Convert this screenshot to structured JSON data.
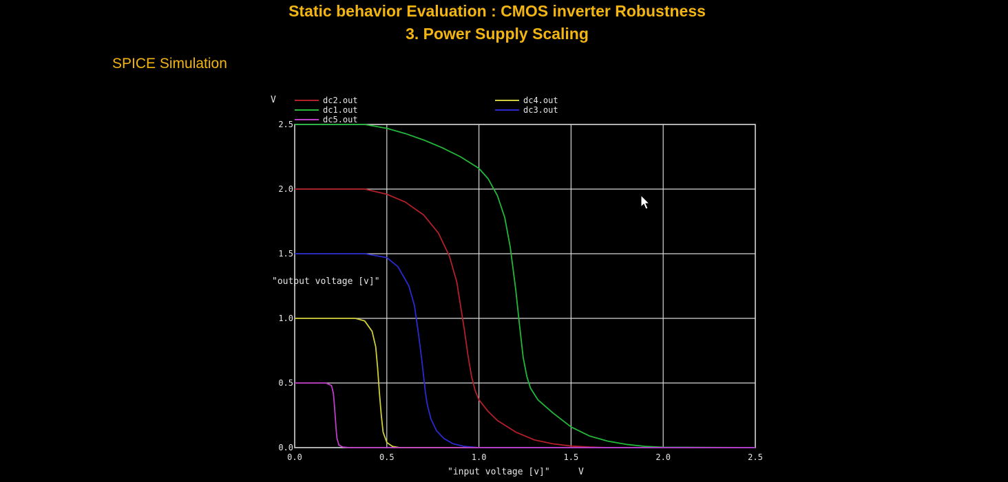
{
  "slide": {
    "title_line1": "Static behavior Evaluation : CMOS inverter Robustness",
    "title_line2": "3. Power Supply Scaling",
    "subtitle": "SPICE Simulation"
  },
  "chart_data": {
    "type": "line",
    "y_unit": "V",
    "x_unit": "V",
    "ylabel": "\"output voltage [v]\"",
    "xlabel": "\"input voltage [v]\"",
    "xlim": [
      0,
      2.5
    ],
    "ylim": [
      0,
      2.5
    ],
    "x_ticks": [
      "0.0",
      "0.5",
      "1.0",
      "1.5",
      "2.0",
      "2.5"
    ],
    "y_ticks": [
      "0.0",
      "0.5",
      "1.0",
      "1.5",
      "2.0",
      "2.5"
    ],
    "grid": true,
    "legend_position": "top",
    "background_color": "#000000",
    "grid_color": "#d8d8d8",
    "series": [
      {
        "name": "dc2.out",
        "color": "#b3202a",
        "x": [
          0,
          0.38,
          0.5,
          0.6,
          0.7,
          0.78,
          0.84,
          0.88,
          0.9,
          0.92,
          0.94,
          0.96,
          0.98,
          1.0,
          1.05,
          1.1,
          1.2,
          1.3,
          1.4,
          1.5,
          1.6,
          1.7,
          2.5
        ],
        "y": [
          2.0,
          2.0,
          1.96,
          1.9,
          1.8,
          1.66,
          1.48,
          1.28,
          1.1,
          0.92,
          0.72,
          0.55,
          0.44,
          0.37,
          0.28,
          0.21,
          0.12,
          0.06,
          0.03,
          0.012,
          0.004,
          0.0,
          0.0
        ]
      },
      {
        "name": "dc4.out",
        "color": "#cfcf3a",
        "x": [
          0,
          0.33,
          0.38,
          0.42,
          0.44,
          0.45,
          0.46,
          0.47,
          0.48,
          0.5,
          0.53,
          0.57,
          0.6,
          2.5
        ],
        "y": [
          1.0,
          1.0,
          0.98,
          0.9,
          0.78,
          0.62,
          0.42,
          0.25,
          0.12,
          0.04,
          0.01,
          0.0,
          0.0,
          0.0
        ]
      },
      {
        "name": "dc1.out",
        "color": "#22b83a",
        "x": [
          0,
          0.38,
          0.5,
          0.6,
          0.7,
          0.8,
          0.9,
          1.0,
          1.05,
          1.1,
          1.14,
          1.17,
          1.2,
          1.22,
          1.24,
          1.26,
          1.28,
          1.32,
          1.4,
          1.5,
          1.6,
          1.7,
          1.8,
          1.9,
          2.0,
          2.5
        ],
        "y": [
          2.5,
          2.5,
          2.47,
          2.43,
          2.38,
          2.32,
          2.25,
          2.16,
          2.08,
          1.95,
          1.78,
          1.55,
          1.22,
          0.95,
          0.7,
          0.55,
          0.46,
          0.37,
          0.27,
          0.16,
          0.09,
          0.05,
          0.025,
          0.01,
          0.003,
          0.0
        ]
      },
      {
        "name": "dc3.out",
        "color": "#2a2ad0",
        "x": [
          0,
          0.38,
          0.5,
          0.56,
          0.62,
          0.65,
          0.67,
          0.69,
          0.7,
          0.71,
          0.72,
          0.74,
          0.77,
          0.81,
          0.86,
          0.92,
          1.0,
          2.5
        ],
        "y": [
          1.5,
          1.5,
          1.47,
          1.4,
          1.25,
          1.1,
          0.9,
          0.68,
          0.55,
          0.42,
          0.33,
          0.22,
          0.13,
          0.07,
          0.03,
          0.01,
          0.0,
          0.0
        ]
      },
      {
        "name": "dc5.out",
        "color": "#c03cc8",
        "x": [
          0,
          0.17,
          0.2,
          0.21,
          0.215,
          0.22,
          0.225,
          0.23,
          0.24,
          0.26,
          0.3,
          2.5
        ],
        "y": [
          0.5,
          0.5,
          0.48,
          0.42,
          0.34,
          0.24,
          0.14,
          0.07,
          0.02,
          0.005,
          0.0,
          0.0
        ]
      }
    ]
  }
}
